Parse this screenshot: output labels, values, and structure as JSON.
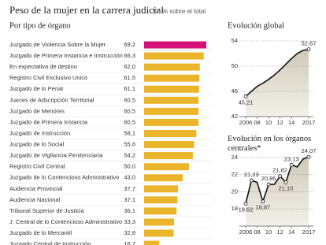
{
  "title": "Peso de la mujer en la carrera judicial",
  "subtitle": "En % sobre el total",
  "chart_data": [
    {
      "type": "bar",
      "horizontal": true,
      "title": "Por tipo de órgano",
      "categories": [
        "Juzgado de Violencia Sobre la Mujer",
        "Juzgado de Primera Instancia e Instrucción",
        "En expectativa de destino",
        "Registro Civil Exclusivo Unico",
        "Juzgado de lo Penal",
        "Jueces de Adscripción Territorial",
        "Juzgado de Menores",
        "Juzgado de Primera Instancia",
        "Juzgado de Instrucción",
        "Juzgado de lo Social",
        "Juzgado de Vigilancia Penitenciaria",
        "Registro Civil Central",
        "Juzgado de lo Contencioso Administrativo",
        "Audiencia Provincial",
        "Audiencia Nacional",
        "Tribunal Superior de Justicia",
        "J. Central de lo Contencioso Administrativo",
        "Juzgado de lo Mercantil",
        "Juzgado Central de Instrucción"
      ],
      "values": [
        69.2,
        66.3,
        62.0,
        61.5,
        61.1,
        60.5,
        60.5,
        60.5,
        58.1,
        55.6,
        54.2,
        50.0,
        43.0,
        37.7,
        37.1,
        36.1,
        33.3,
        32.8,
        16.7
      ],
      "value_labels": [
        "69,2",
        "66,3",
        "62,0",
        "61,5",
        "61,1",
        "60,5",
        "60,5",
        "60,5",
        "58,1",
        "55,6",
        "54,2",
        "50,0",
        "43,0",
        "37,7",
        "37,1",
        "36,1",
        "33,3",
        "32,8",
        "16,7"
      ],
      "colors": [
        "#d6117a",
        "#eab52b",
        "#eab52b",
        "#eab52b",
        "#eab52b",
        "#eab52b",
        "#eab52b",
        "#eab52b",
        "#eab52b",
        "#eab52b",
        "#eab52b",
        "#eab52b",
        "#eab52b",
        "#eab52b",
        "#eab52b",
        "#eab52b",
        "#eab52b",
        "#eab52b",
        "#eab52b"
      ]
    },
    {
      "type": "line",
      "title": "Evolución global",
      "x": [
        2006,
        2007,
        2008,
        2009,
        2010,
        2011,
        2012,
        2013,
        2014,
        2015,
        2016,
        2017
      ],
      "values": [
        45.21,
        46.0,
        46.8,
        47.3,
        47.9,
        48.6,
        49.4,
        50.3,
        51.2,
        52.0,
        52.5,
        52.67
      ],
      "value_labels": [
        "45,21",
        null,
        null,
        null,
        null,
        null,
        null,
        null,
        null,
        null,
        null,
        "52,67"
      ],
      "xlim": [
        2006,
        2017
      ],
      "xticks": [
        2006,
        {
          "value": 2008,
          "label": "08"
        },
        {
          "value": 2010,
          "label": "10"
        },
        {
          "value": 2012,
          "label": "12"
        },
        {
          "value": 2014,
          "label": "14"
        },
        2017
      ],
      "ylim": [
        42,
        54
      ],
      "yticks": [
        42,
        46,
        50,
        54
      ],
      "grid": true,
      "color": "#111111"
    },
    {
      "type": "line",
      "title": "Evolución en los órganos centrales*",
      "x": [
        2006,
        2007,
        2008,
        2009,
        2010,
        2011,
        2012,
        2013,
        2014,
        2015,
        2016,
        2017
      ],
      "values": [
        18.62,
        21.33,
        21.1,
        18.87,
        20.86,
        20.86,
        21.82,
        21.1,
        23.13,
        22.9,
        23.8,
        24.07
      ],
      "value_labels": [
        "18,62",
        "21,33",
        null,
        "18,87",
        "20,86",
        null,
        "21,82",
        "21,10",
        "23,13",
        null,
        null,
        "24,07"
      ],
      "xlim": [
        2006,
        2017
      ],
      "xticks": [
        2006,
        {
          "value": 2008,
          "label": "08"
        },
        {
          "value": 2010,
          "label": "10"
        },
        {
          "value": 2012,
          "label": "12"
        },
        {
          "value": 2014,
          "label": "14"
        },
        2017
      ],
      "ylim": [
        16,
        25
      ],
      "yticks": [
        18,
        20,
        22,
        24
      ],
      "grid": true,
      "color": "#111111"
    }
  ]
}
